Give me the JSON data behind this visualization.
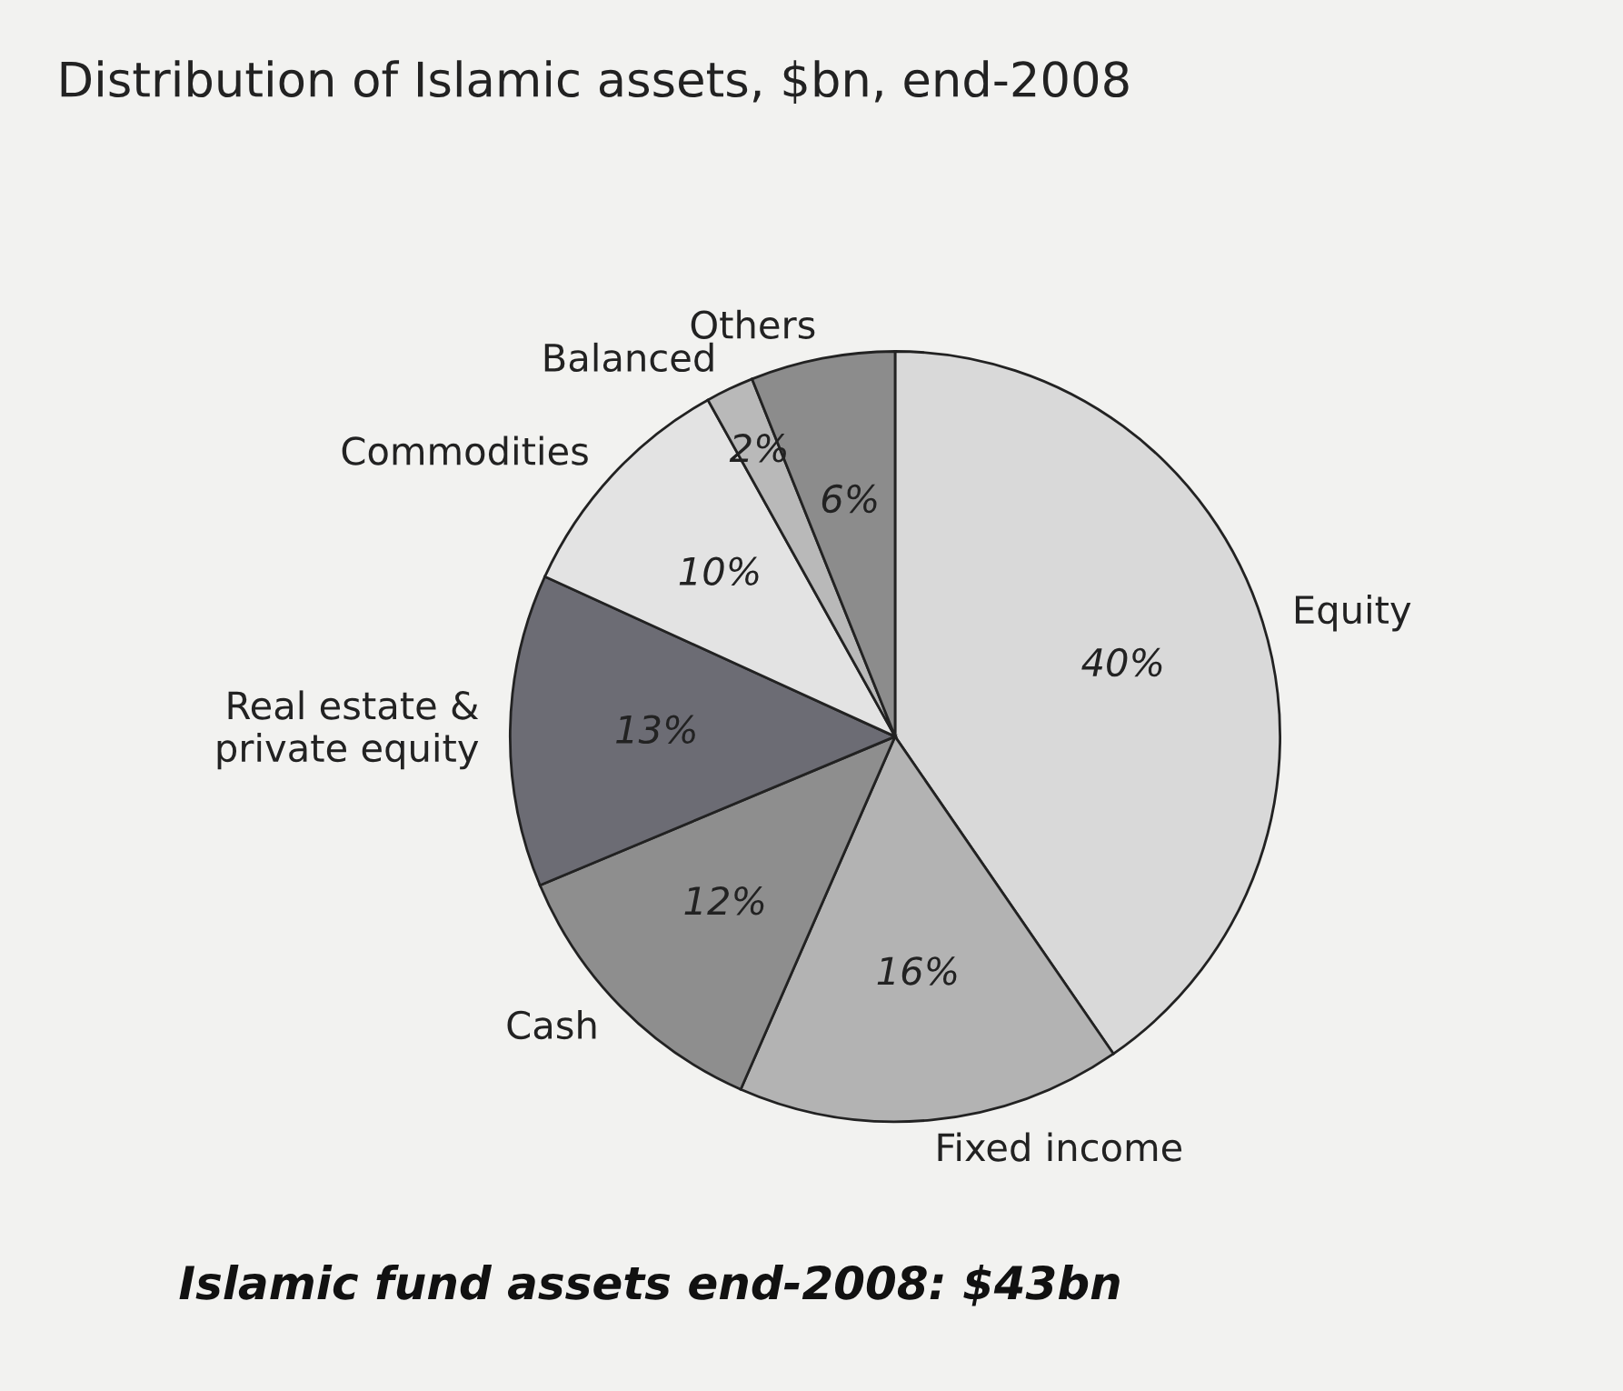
{
  "chart_data": {
    "type": "pie",
    "title": "Distribution of Islamic assets, $bn, end-2008",
    "categories": [
      "Equity",
      "Fixed income",
      "Cash",
      "Real estate &\nprivate equity",
      "Commodities",
      "Balanced",
      "Others"
    ],
    "values": [
      40,
      16,
      12,
      13,
      10,
      2,
      6
    ],
    "value_labels": [
      "40%",
      "16%",
      "12%",
      "13%",
      "10%",
      "2%",
      "6%"
    ],
    "colors": [
      "#d9d9d9",
      "#b3b3b3",
      "#8e8e8e",
      "#6c6c74",
      "#e3e3e3",
      "#b9b9b9",
      "#8c8c8c"
    ],
    "annotations": [
      "Islamic fund assets end-2008: $43bn"
    ],
    "legend": false
  }
}
